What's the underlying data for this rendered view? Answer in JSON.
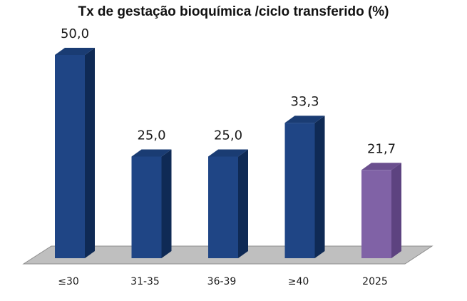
{
  "chart_data": {
    "type": "bar",
    "title": "Tx de gestação bioquímica /ciclo transferido (%)",
    "xlabel": "",
    "ylabel": "",
    "categories": [
      "≤30",
      "31-35",
      "36-39",
      "≥40",
      "2025"
    ],
    "values": [
      50.0,
      25.0,
      25.0,
      33.3,
      21.7
    ],
    "data_labels": [
      "50,0",
      "25,0",
      "25,0",
      "33,3",
      "21,7"
    ],
    "ylim": [
      0,
      50
    ],
    "grid": false,
    "legend": "none",
    "style": "3d-column",
    "colors": {
      "default_front": "#1F4585",
      "default_side": "#0F2A55",
      "default_top": "#1A3C73",
      "highlight_front": "#8062A6",
      "highlight_side": "#5D4380",
      "highlight_top": "#6B4F8E",
      "floor": "#BFBFBF",
      "floor_stroke": "#8C8C8C"
    },
    "highlight_index": 4
  }
}
